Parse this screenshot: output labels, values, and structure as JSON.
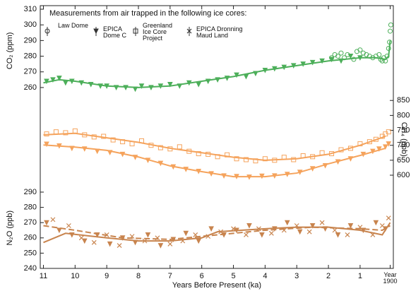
{
  "chart_data": [
    {
      "type": "line",
      "title": "Measurements from air trapped in the following ice cores:",
      "legend": {
        "entries": [
          {
            "name": "Law Dome",
            "marker": "circle"
          },
          {
            "name": "EPICA Dome C",
            "marker": "triangle"
          },
          {
            "name": "Greenland Ice Core Project",
            "marker": "square"
          },
          {
            "name": "EPICA Dronning Maud Land",
            "marker": "x"
          }
        ]
      },
      "ylabel": "CO₂ (ppm)",
      "yaxis": "left",
      "xlim": [
        11.1,
        -0.05
      ],
      "ylim": [
        255,
        312
      ],
      "yticks": [
        260,
        270,
        280,
        290,
        300,
        310
      ],
      "series": [
        {
          "color": "#4daf5a",
          "dash": "solid",
          "x": [
            11,
            10.5,
            10,
            9,
            8,
            7,
            6,
            5,
            4,
            3,
            2,
            1.5,
            1,
            0.5,
            0.2,
            0.1,
            0.05
          ],
          "values": [
            263,
            265,
            264,
            261,
            260,
            261,
            264,
            267,
            271,
            274,
            277,
            278,
            279,
            279,
            278,
            280,
            290
          ]
        },
        {
          "color": "#4daf5a",
          "marker": "triangle",
          "x": [
            10.9,
            10.7,
            10.5,
            10.3,
            10.1,
            9.8,
            9.5,
            9.2,
            9.0,
            8.7,
            8.4,
            8.1,
            7.9,
            7.6,
            7.3,
            7.0,
            6.7,
            6.4,
            6.1,
            5.8,
            5.5,
            5.2,
            4.9,
            4.6,
            4.3,
            4.0,
            3.7,
            3.4,
            3.1,
            2.8,
            2.5,
            2.2,
            1.9,
            1.6,
            1.3,
            1.0
          ],
          "values": [
            264,
            265,
            266,
            263,
            264,
            263,
            262,
            261,
            261,
            260,
            260,
            259,
            261,
            260,
            261,
            262,
            261,
            263,
            262,
            264,
            265,
            266,
            268,
            267,
            269,
            271,
            272,
            273,
            274,
            275,
            276,
            277,
            278,
            277,
            280,
            279
          ]
        },
        {
          "color": "#4daf5a",
          "marker": "circle",
          "x": [
            1.9,
            1.8,
            1.7,
            1.6,
            1.5,
            1.4,
            1.2,
            1.1,
            1.0,
            0.9,
            0.8,
            0.7,
            0.6,
            0.5,
            0.4,
            0.35,
            0.3,
            0.25,
            0.2,
            0.15,
            0.1,
            0.07,
            0.05,
            0.03
          ],
          "values": [
            279,
            281,
            280,
            282,
            279,
            281,
            278,
            283,
            284,
            282,
            281,
            280,
            279,
            280,
            281,
            278,
            277,
            279,
            277,
            280,
            285,
            289,
            296,
            300
          ]
        }
      ]
    },
    {
      "type": "line",
      "ylabel": "CH₄ (ppb)",
      "yaxis": "right",
      "xlim": [
        11.1,
        -0.05
      ],
      "ylim": [
        580,
        860
      ],
      "yticks": [
        600,
        650,
        700,
        750,
        800,
        850
      ],
      "series": [
        {
          "color": "#f5a35c",
          "dash": "solid",
          "x": [
            11,
            10,
            9,
            8,
            7,
            6,
            5,
            4,
            3,
            2,
            1,
            0.2
          ],
          "values": [
            735,
            740,
            725,
            710,
            690,
            675,
            660,
            650,
            655,
            670,
            700,
            730
          ]
        },
        {
          "color": "#f5a35c",
          "dash": "solid",
          "x": [
            11,
            10,
            9,
            8,
            7,
            6,
            5,
            4,
            3,
            2,
            1,
            0.2
          ],
          "values": [
            701,
            694,
            683,
            661,
            631,
            612,
            595,
            595,
            607,
            638,
            666,
            690
          ]
        },
        {
          "color": "#f5a35c",
          "marker": "square",
          "x": [
            10.9,
            10.6,
            10.3,
            10.0,
            9.7,
            9.4,
            9.1,
            8.8,
            8.5,
            8.2,
            7.9,
            7.6,
            7.3,
            7.0,
            6.7,
            6.4,
            6.1,
            5.8,
            5.5,
            5.2,
            4.9,
            4.6,
            4.3,
            4.0,
            3.7,
            3.4,
            3.1,
            2.8,
            2.5,
            2.2,
            1.9,
            1.6,
            1.3,
            1.0,
            0.7,
            0.5,
            0.3,
            0.2,
            0.1
          ],
          "values": [
            738,
            745,
            742,
            748,
            735,
            728,
            730,
            718,
            712,
            705,
            715,
            700,
            692,
            688,
            695,
            680,
            672,
            670,
            662,
            668,
            655,
            652,
            648,
            655,
            650,
            660,
            652,
            665,
            662,
            675,
            672,
            685,
            690,
            705,
            712,
            720,
            730,
            738,
            745
          ]
        },
        {
          "color": "#f5a35c",
          "marker": "triangle",
          "x": [
            10.9,
            10.5,
            10.1,
            9.7,
            9.3,
            8.9,
            8.5,
            8.1,
            7.7,
            7.3,
            6.9,
            6.5,
            6.1,
            5.7,
            5.3,
            4.9,
            4.5,
            4.1,
            3.7,
            3.3,
            2.9,
            2.5,
            2.1,
            1.7,
            1.3,
            0.9,
            0.6,
            0.4,
            0.2,
            0.1
          ],
          "values": [
            704,
            698,
            690,
            688,
            680,
            676,
            670,
            660,
            650,
            640,
            628,
            620,
            613,
            605,
            598,
            596,
            594,
            597,
            598,
            603,
            610,
            622,
            632,
            645,
            655,
            670,
            680,
            688,
            695,
            705
          ]
        }
      ]
    },
    {
      "type": "line",
      "ylabel": "N₂O (ppb)",
      "yaxis": "left",
      "xlabel": "Years Before Present (ka)",
      "xlim": [
        11.1,
        -0.05
      ],
      "ylim": [
        240,
        293
      ],
      "yticks": [
        240,
        250,
        260,
        270,
        280,
        290
      ],
      "xticks": [
        11,
        10,
        9,
        8,
        7,
        6,
        5,
        4,
        3,
        2,
        1,
        {
          "value": 0.05,
          "label": "Year 1900"
        }
      ],
      "series": [
        {
          "color": "#c8844e",
          "dash": "solid",
          "x": [
            11,
            10.3,
            9,
            8,
            7,
            6,
            5.5,
            4,
            3,
            2,
            1,
            0.3,
            0.05
          ],
          "values": [
            257,
            263,
            260,
            258,
            258,
            260,
            264,
            266,
            267,
            267,
            265,
            262,
            270
          ]
        },
        {
          "color": "#c8844e",
          "dash": "dashed",
          "x": [
            11,
            10,
            8.5,
            7,
            5.5,
            4,
            2.5,
            1,
            0.3,
            0.05
          ],
          "values": [
            268,
            265,
            260,
            259,
            262,
            265,
            267,
            266,
            265,
            268
          ]
        },
        {
          "color": "#c8844e",
          "marker": "triangle",
          "x": [
            10.9,
            10.5,
            10.1,
            9.7,
            9.3,
            8.9,
            8.5,
            8.1,
            7.7,
            7.3,
            6.9,
            6.5,
            6.1,
            5.7,
            5.3,
            4.9,
            4.5,
            4.1,
            3.7,
            3.3,
            2.9,
            2.5,
            2.1,
            1.7,
            1.3,
            0.9,
            0.5,
            0.2
          ],
          "values": [
            270,
            265,
            262,
            258,
            262,
            256,
            260,
            257,
            262,
            255,
            259,
            263,
            258,
            266,
            262,
            265,
            268,
            262,
            266,
            270,
            264,
            268,
            266,
            262,
            268,
            265,
            270,
            266
          ]
        },
        {
          "color": "#c8844e",
          "marker": "x",
          "x": [
            10.7,
            10.2,
            9.8,
            9.4,
            9.0,
            8.6,
            8.2,
            7.8,
            7.4,
            7.0,
            6.6,
            6.2,
            5.8,
            5.4,
            5.0,
            4.6,
            4.2,
            3.8,
            3.4,
            3.0,
            2.6,
            2.2,
            1.8,
            1.4,
            1.0,
            0.6,
            0.3,
            0.1
          ],
          "values": [
            272,
            268,
            260,
            257,
            262,
            255,
            261,
            258,
            260,
            256,
            258,
            262,
            261,
            264,
            266,
            262,
            266,
            263,
            265,
            268,
            264,
            270,
            265,
            262,
            267,
            262,
            268,
            273
          ]
        }
      ]
    }
  ]
}
